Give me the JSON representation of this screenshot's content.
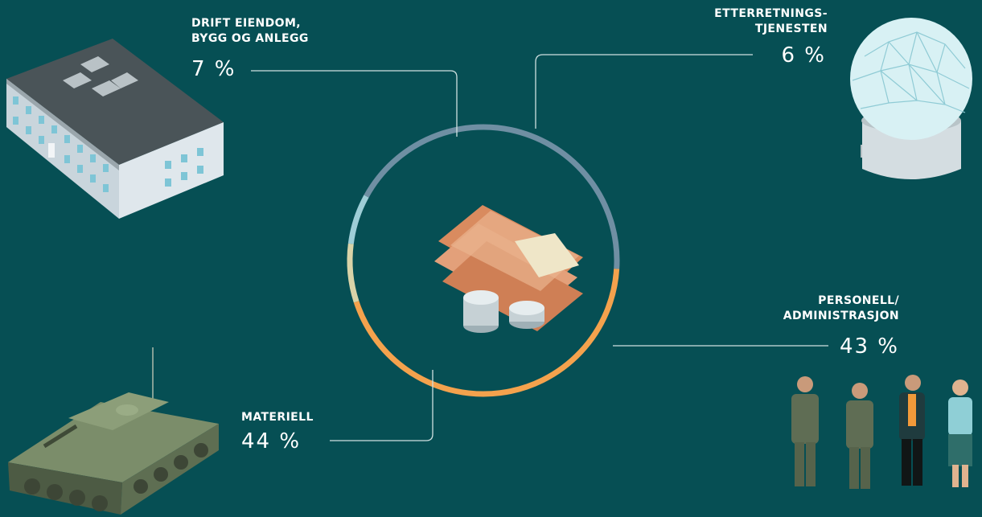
{
  "colors": {
    "background": "#064f54",
    "materiell": "#f4a24d",
    "drift": "#d9d3a8",
    "etterretning": "#9ecdd6",
    "personell": "#6f8fa3",
    "leader": "#cfe0e0"
  },
  "chart_data": {
    "type": "pie",
    "style": "donut-ring",
    "center_icon": "money-banknotes-coins-icon",
    "slices": [
      {
        "key": "drift",
        "label": "DRIFT EIENDOM,\nBYGG OG ANLEGG",
        "value": 7,
        "value_label": "7 %",
        "color": "#d9d3a8",
        "icon": "office-building-icon"
      },
      {
        "key": "etterretning",
        "label": "ETTERRETNINGS-\nTJENESTEN",
        "value": 6,
        "value_label": "6 %",
        "color": "#9ecdd6",
        "icon": "radar-dome-icon"
      },
      {
        "key": "personell",
        "label": "PERSONELL/\nADMINISTRASJON",
        "value": 43,
        "value_label": "43 %",
        "color": "#6f8fa3",
        "icon": "personnel-group-icon"
      },
      {
        "key": "materiell",
        "label": "MATERIELL",
        "value": 44,
        "value_label": "44 %",
        "color": "#f4a24d",
        "icon": "armored-vehicle-icon"
      }
    ]
  }
}
